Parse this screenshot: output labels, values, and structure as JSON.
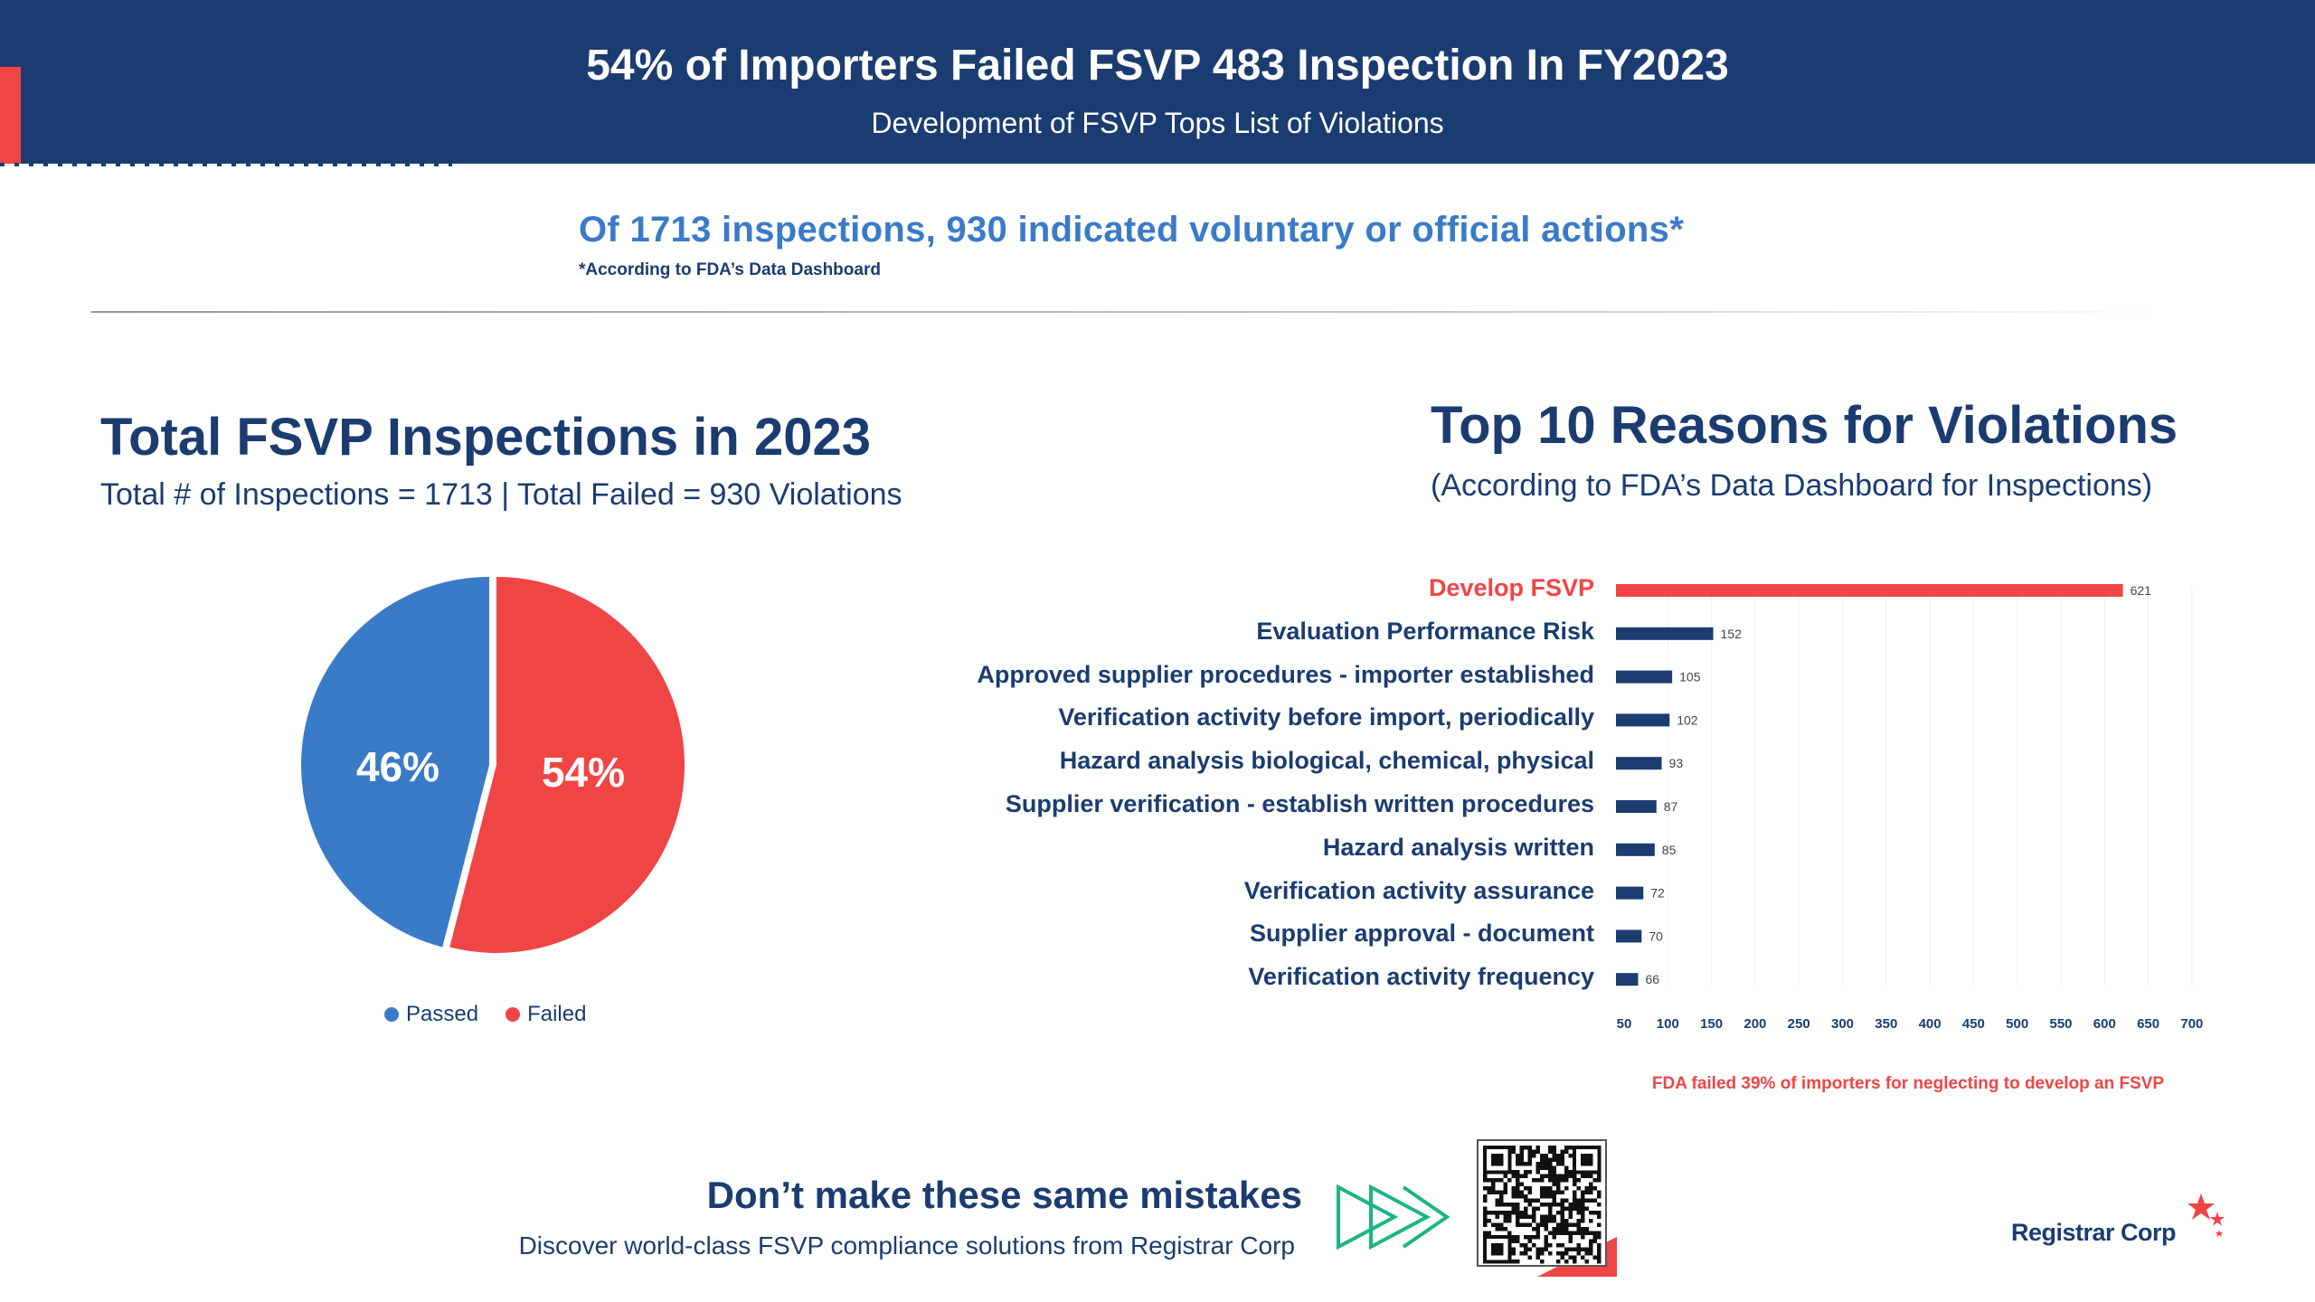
{
  "header": {
    "title": "54% of Importers Failed FSVP 483 Inspection In FY2023",
    "subtitle": "Development of FSVP Tops List of Violations"
  },
  "summary": {
    "statement": "Of 1713 inspections, 930 indicated voluntary or official actions*",
    "footnote": "*According to FDA’s Data Dashboard"
  },
  "colors": {
    "navy": "#1b3c71",
    "red": "#f04545",
    "blue": "#3a7bc8",
    "green": "#1db584"
  },
  "chart_data": [
    {
      "type": "pie",
      "title": "Total FSVP Inspections in 2023",
      "subtitle": "Total # of Inspections = 1713 | Total Failed = 930 Violations",
      "labels": [
        "Passed",
        "Failed"
      ],
      "values": [
        46,
        54
      ],
      "data_labels": [
        "46%",
        "54%"
      ],
      "colors": [
        "#3a7bc8",
        "#f04545"
      ],
      "legend": "bottom"
    },
    {
      "type": "bar",
      "orientation": "horizontal",
      "title": "Top 10 Reasons for Violations",
      "subtitle": "(According to FDA’s Data Dashboard for Inspections)",
      "categories": [
        "Develop FSVP",
        "Evaluation Performance Risk",
        "Approved supplier procedures - importer established",
        "Verification activity before import, periodically",
        "Hazard analysis biological, chemical, physical",
        "Supplier verification - establish written procedures",
        "Hazard analysis written",
        "Verification activity assurance",
        "Supplier approval - document",
        "Verification activity frequency"
      ],
      "values": [
        621,
        152,
        105,
        102,
        93,
        87,
        85,
        72,
        70,
        66
      ],
      "value_labels": [
        "621",
        "152",
        "105",
        "102",
        "93",
        "87",
        "85",
        "72",
        "70",
        "66"
      ],
      "highlight_index": 0,
      "xlim": [
        50,
        700
      ],
      "xticks": [
        "50",
        "100",
        "150",
        "200",
        "250",
        "300",
        "350",
        "400",
        "450",
        "500",
        "550",
        "600",
        "650",
        "700"
      ],
      "grid": true,
      "note": "FDA failed 39% of importers for neglecting to develop an FSVP"
    }
  ],
  "cta": {
    "headline": "Don’t make these same mistakes",
    "subline": "Discover world-class FSVP compliance solutions from Registrar Corp"
  },
  "logo": {
    "text": "Registrar Corp"
  }
}
